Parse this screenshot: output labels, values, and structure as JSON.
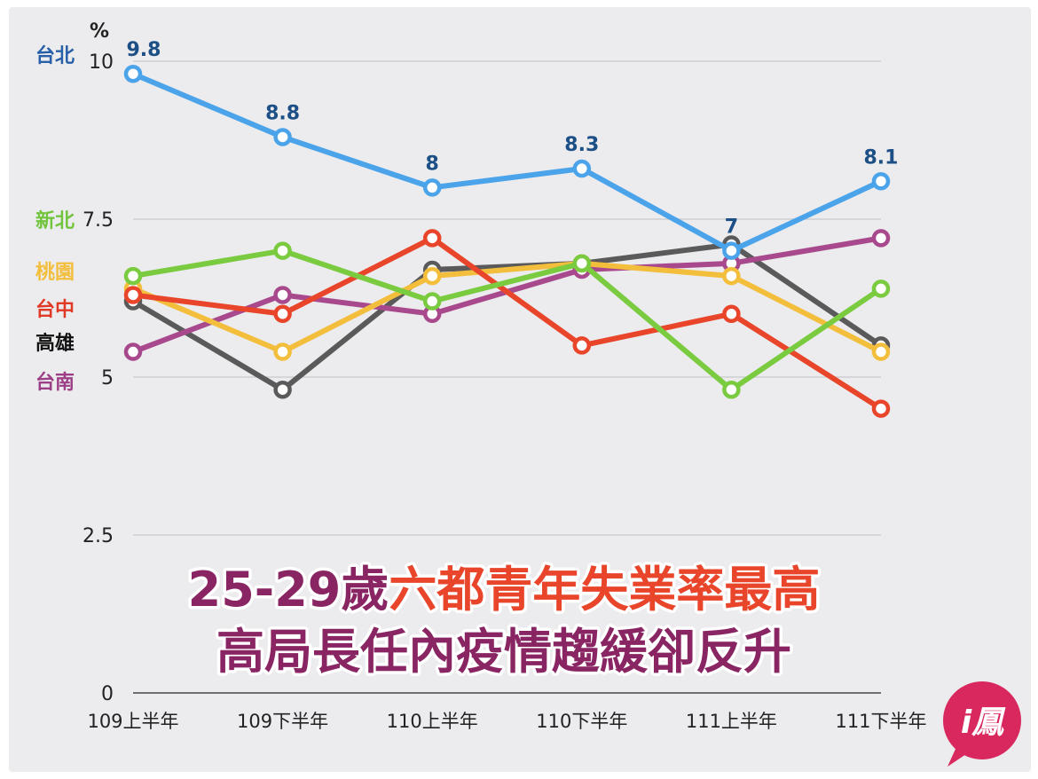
{
  "chart_data": {
    "type": "line",
    "unit_label": "%",
    "categories": [
      "109上半年",
      "109下半年",
      "110上半年",
      "110下半年",
      "111上半年",
      "111下半年"
    ],
    "yticks": [
      "0",
      "2.5",
      "5",
      "7.5",
      "10"
    ],
    "ylim": [
      0,
      10
    ],
    "grid": true,
    "series": [
      {
        "name": "高雄",
        "color": "#5a5a5a",
        "values": [
          6.2,
          4.8,
          6.7,
          6.8,
          7.1,
          5.5
        ]
      },
      {
        "name": "台南",
        "color": "#a9498d",
        "values": [
          5.4,
          6.3,
          6.0,
          6.7,
          6.8,
          7.2
        ]
      },
      {
        "name": "桃園",
        "color": "#f2be3c",
        "values": [
          6.4,
          5.4,
          6.6,
          6.8,
          6.6,
          5.4
        ]
      },
      {
        "name": "台中",
        "color": "#e8452b",
        "values": [
          6.3,
          6.0,
          7.2,
          5.5,
          6.0,
          4.5
        ]
      },
      {
        "name": "新北",
        "color": "#7acb3f",
        "values": [
          6.6,
          7.0,
          6.2,
          6.8,
          4.8,
          6.4
        ]
      },
      {
        "name": "台北",
        "color": "#4ba3ea",
        "values": [
          9.8,
          8.8,
          8.0,
          8.3,
          7.0,
          8.1
        ],
        "labels": [
          "9.8",
          "8.8",
          "8",
          "8.3",
          "7",
          "8.1"
        ]
      }
    ],
    "legend_order": [
      "台北",
      "新北",
      "桃園",
      "台中",
      "高雄",
      "台南"
    ],
    "legend_colors": {
      "台北": "#2760a8",
      "新北": "#72c43d",
      "桃園": "#f2be3c",
      "台中": "#e03a25",
      "高雄": "#111111",
      "台南": "#9c3f86"
    }
  },
  "headline": {
    "line1_a": "25-29歲",
    "line1_b": "六都青年失業率最高",
    "line2": "高局長任內疫情趨緩卻反升",
    "color_a": "#8a2563",
    "color_b": "#e8452b"
  },
  "logo": {
    "text": "i鳳",
    "color": "#d8285e"
  }
}
